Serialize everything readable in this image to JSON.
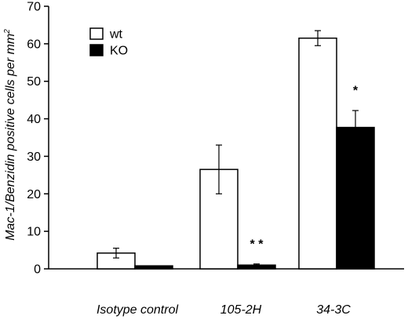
{
  "chart_data": {
    "type": "bar",
    "title": "",
    "xlabel": "",
    "ylabel": "Mac-1/Benzidin positive cells per mm",
    "ylabel_superscript": "2",
    "ylim": [
      0,
      70
    ],
    "yticks": [
      0,
      10,
      20,
      30,
      40,
      50,
      60,
      70
    ],
    "grid": false,
    "legend_position": "top-left",
    "categories": [
      "Isotype control",
      "105-2H",
      "34-3C"
    ],
    "series": [
      {
        "name": "wt",
        "fill": "#ffffff",
        "values": [
          4.2,
          26.5,
          61.5
        ],
        "errors": [
          1.3,
          6.5,
          2.0
        ]
      },
      {
        "name": "KO",
        "fill": "#000000",
        "values": [
          0.8,
          1.0,
          37.7
        ],
        "errors": [
          0,
          0.3,
          4.5
        ]
      }
    ],
    "annotations": [
      {
        "text": "* *",
        "category_index": 1,
        "series_index": 1,
        "y": 5.5
      },
      {
        "text": "*",
        "category_index": 2,
        "series_index": 1,
        "y": 46.5
      }
    ]
  }
}
